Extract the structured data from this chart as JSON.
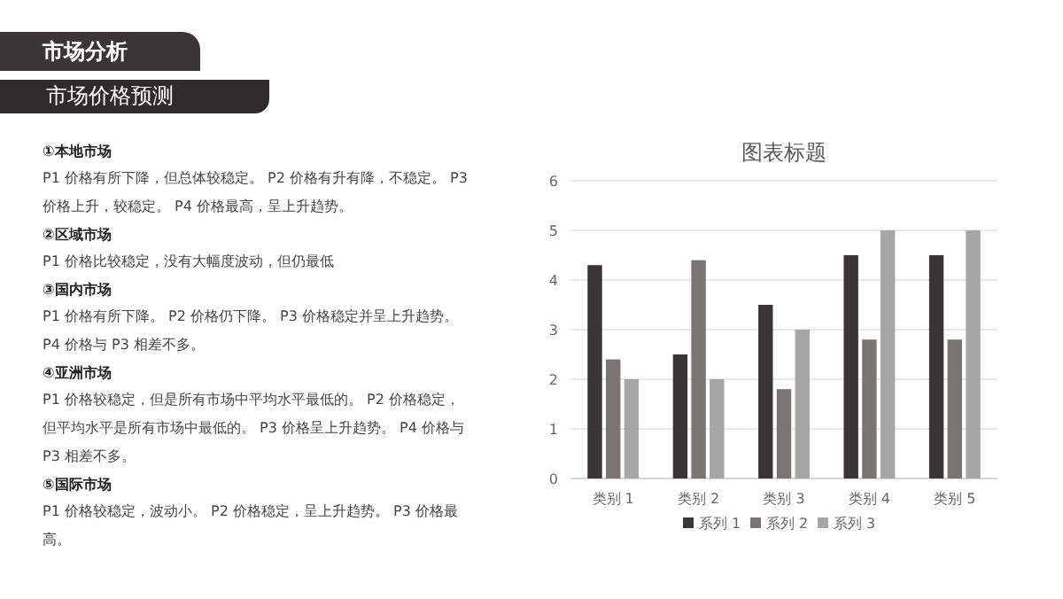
{
  "chart_data": {
    "type": "bar",
    "title": "图表标题",
    "categories": [
      "类别 1",
      "类别 2",
      "类别 3",
      "类别 4",
      "类别 5"
    ],
    "series": [
      {
        "name": "系列 1",
        "color": "#3a3536",
        "values": [
          4.3,
          2.5,
          3.5,
          4.5,
          4.5
        ]
      },
      {
        "name": "系列 2",
        "color": "#7a7474",
        "values": [
          2.4,
          4.4,
          1.8,
          2.8,
          2.8
        ]
      },
      {
        "name": "系列 3",
        "color": "#a6a6a6",
        "values": [
          2,
          2,
          3,
          5,
          5
        ]
      }
    ],
    "ylim": [
      0,
      6
    ],
    "yticks": [
      0,
      1,
      2,
      3,
      4,
      5,
      6
    ],
    "grid": "y",
    "legend": "bottom",
    "annotations": [
      "市场分析",
      "市场价格预测",
      "①本地市场",
      "P1 价格有所下降，但总体较稳定。 P2 价格有升有降，不稳定。 P3 价格上升，较稳定。 P4 价格最高，呈上升趋势。",
      "②区域市场",
      "P1 价格比较稳定，没有大幅度波动，但仍最低",
      "③国内市场",
      "P1 价格有所下降。 P2 价格仍下降。 P3 价格稳定并呈上升趋势。 P4 价格与 P3 相差不多。",
      "④亚洲市场",
      "P1 价格较稳定，但是所有市场中平均水平最低的。 P2 价格稳定，但平均水平是所有市场中最低的。 P3 价格呈上升趋势。 P4 价格与 P3 相差不多。",
      "⑤国际市场",
      "P1 价格较稳定，波动小。 P2 价格稳定，呈上升趋势。 P3 价格最高。"
    ]
  }
}
